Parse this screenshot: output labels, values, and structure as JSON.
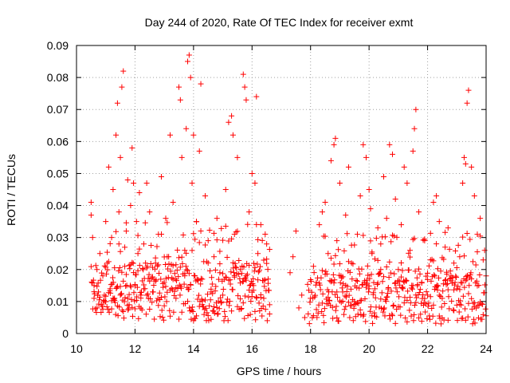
{
  "chart_data": {
    "type": "scatter",
    "title": "Day 244 of 2020, Rate Of TEC Index for receiver exmt",
    "xlabel": "GPS time / hours",
    "ylabel": "ROTI / TECUs",
    "xlim": [
      10,
      24
    ],
    "ylim": [
      0,
      0.09
    ],
    "x_ticks": [
      10,
      12,
      14,
      16,
      18,
      20,
      22,
      24
    ],
    "x_tick_labels": [
      "10",
      "12",
      "14",
      "16",
      "18",
      "20",
      "22",
      "24"
    ],
    "y_ticks": [
      0,
      0.01,
      0.02,
      0.03,
      0.04,
      0.05,
      0.06,
      0.07,
      0.08,
      0.09
    ],
    "y_tick_labels": [
      "0",
      "0.01",
      "0.02",
      "0.03",
      "0.04",
      "0.05",
      "0.06",
      "0.07",
      "0.08",
      "0.09"
    ],
    "grid": true,
    "marker": "plus",
    "color": "#ff0000",
    "series": [
      {
        "name": "ROTI",
        "points": [
          [
            10.5,
            0.041
          ],
          [
            10.5,
            0.037
          ],
          [
            10.55,
            0.03
          ],
          [
            10.6,
            0.015
          ],
          [
            10.6,
            0.011
          ],
          [
            10.7,
            0.008
          ],
          [
            10.7,
            0.02
          ],
          [
            10.75,
            0.013
          ],
          [
            10.8,
            0.025
          ],
          [
            10.85,
            0.009
          ],
          [
            10.9,
            0.018
          ],
          [
            10.95,
            0.012
          ],
          [
            11.0,
            0.035
          ],
          [
            11.0,
            0.01
          ],
          [
            11.05,
            0.022
          ],
          [
            11.1,
            0.052
          ],
          [
            11.15,
            0.014
          ],
          [
            11.2,
            0.03
          ],
          [
            11.25,
            0.045
          ],
          [
            11.3,
            0.011
          ],
          [
            11.35,
            0.062
          ],
          [
            11.4,
            0.072
          ],
          [
            11.45,
            0.038
          ],
          [
            11.5,
            0.055
          ],
          [
            11.5,
            0.012
          ],
          [
            11.55,
            0.077
          ],
          [
            11.6,
            0.082
          ],
          [
            11.65,
            0.021
          ],
          [
            11.7,
            0.032
          ],
          [
            11.75,
            0.048
          ],
          [
            11.8,
            0.009
          ],
          [
            11.85,
            0.04
          ],
          [
            11.9,
            0.058
          ],
          [
            11.95,
            0.047
          ],
          [
            12.0,
            0.015
          ],
          [
            12.05,
            0.035
          ],
          [
            12.1,
            0.025
          ],
          [
            12.15,
            0.044
          ],
          [
            12.2,
            0.012
          ],
          [
            12.3,
            0.028
          ],
          [
            12.4,
            0.047
          ],
          [
            12.5,
            0.038
          ],
          [
            12.6,
            0.013
          ],
          [
            12.7,
            0.022
          ],
          [
            12.8,
            0.031
          ],
          [
            12.9,
            0.049
          ],
          [
            13.0,
            0.016
          ],
          [
            13.05,
            0.036
          ],
          [
            13.1,
            0.024
          ],
          [
            13.2,
            0.062
          ],
          [
            13.3,
            0.041
          ],
          [
            13.4,
            0.011
          ],
          [
            13.5,
            0.077
          ],
          [
            13.55,
            0.073
          ],
          [
            13.6,
            0.055
          ],
          [
            13.7,
            0.026
          ],
          [
            13.75,
            0.064
          ],
          [
            13.8,
            0.085
          ],
          [
            13.85,
            0.087
          ],
          [
            13.9,
            0.08
          ],
          [
            13.95,
            0.047
          ],
          [
            14.0,
            0.062
          ],
          [
            14.05,
            0.018
          ],
          [
            14.1,
            0.035
          ],
          [
            14.2,
            0.057
          ],
          [
            14.25,
            0.078
          ],
          [
            14.3,
            0.009
          ],
          [
            14.4,
            0.043
          ],
          [
            14.5,
            0.029
          ],
          [
            14.6,
            0.013
          ],
          [
            14.7,
            0.024
          ],
          [
            14.8,
            0.036
          ],
          [
            14.9,
            0.019
          ],
          [
            15.0,
            0.012
          ],
          [
            15.1,
            0.045
          ],
          [
            15.2,
            0.066
          ],
          [
            15.3,
            0.068
          ],
          [
            15.35,
            0.062
          ],
          [
            15.4,
            0.031
          ],
          [
            15.5,
            0.055
          ],
          [
            15.6,
            0.02
          ],
          [
            15.7,
            0.081
          ],
          [
            15.75,
            0.077
          ],
          [
            15.8,
            0.073
          ],
          [
            15.9,
            0.038
          ],
          [
            16.0,
            0.05
          ],
          [
            16.05,
            0.015
          ],
          [
            16.1,
            0.047
          ],
          [
            16.15,
            0.074
          ],
          [
            16.2,
            0.025
          ],
          [
            16.3,
            0.034
          ],
          [
            16.4,
            0.011
          ],
          [
            16.5,
            0.028
          ],
          [
            16.55,
            0.017
          ],
          [
            16.6,
            0.009
          ],
          [
            17.3,
            0.019
          ],
          [
            17.4,
            0.024
          ],
          [
            17.5,
            0.032
          ],
          [
            17.6,
            0.008
          ],
          [
            17.7,
            0.012
          ],
          [
            17.8,
            0.005
          ],
          [
            18.0,
            0.011
          ],
          [
            18.1,
            0.021
          ],
          [
            18.2,
            0.016
          ],
          [
            18.3,
            0.034
          ],
          [
            18.4,
            0.038
          ],
          [
            18.5,
            0.041
          ],
          [
            18.6,
            0.025
          ],
          [
            18.7,
            0.054
          ],
          [
            18.8,
            0.059
          ],
          [
            18.85,
            0.061
          ],
          [
            18.9,
            0.029
          ],
          [
            19.0,
            0.047
          ],
          [
            19.1,
            0.013
          ],
          [
            19.2,
            0.037
          ],
          [
            19.3,
            0.052
          ],
          [
            19.4,
            0.022
          ],
          [
            19.5,
            0.01
          ],
          [
            19.6,
            0.031
          ],
          [
            19.7,
            0.043
          ],
          [
            19.8,
            0.059
          ],
          [
            19.9,
            0.055
          ],
          [
            20.0,
            0.045
          ],
          [
            20.05,
            0.039
          ],
          [
            20.1,
            0.025
          ],
          [
            20.2,
            0.014
          ],
          [
            20.3,
            0.033
          ],
          [
            20.4,
            0.028
          ],
          [
            20.5,
            0.049
          ],
          [
            20.6,
            0.036
          ],
          [
            20.7,
            0.059
          ],
          [
            20.8,
            0.056
          ],
          [
            20.9,
            0.042
          ],
          [
            21.0,
            0.02
          ],
          [
            21.1,
            0.034
          ],
          [
            21.2,
            0.052
          ],
          [
            21.3,
            0.047
          ],
          [
            21.4,
            0.026
          ],
          [
            21.5,
            0.057
          ],
          [
            21.55,
            0.064
          ],
          [
            21.6,
            0.07
          ],
          [
            21.7,
            0.038
          ],
          [
            21.8,
            0.016
          ],
          [
            21.9,
            0.029
          ],
          [
            22.0,
            0.012
          ],
          [
            22.1,
            0.023
          ],
          [
            22.2,
            0.041
          ],
          [
            22.3,
            0.043
          ],
          [
            22.4,
            0.035
          ],
          [
            22.5,
            0.011
          ],
          [
            22.6,
            0.027
          ],
          [
            22.7,
            0.033
          ],
          [
            22.8,
            0.018
          ],
          [
            22.9,
            0.022
          ],
          [
            23.0,
            0.014
          ],
          [
            23.1,
            0.024
          ],
          [
            23.2,
            0.047
          ],
          [
            23.25,
            0.055
          ],
          [
            23.3,
            0.053
          ],
          [
            23.35,
            0.072
          ],
          [
            23.4,
            0.076
          ],
          [
            23.5,
            0.052
          ],
          [
            23.6,
            0.043
          ],
          [
            23.7,
            0.031
          ],
          [
            23.8,
            0.036
          ],
          [
            23.9,
            0.023
          ],
          [
            23.95,
            0.026
          ],
          [
            24.0,
            0.018
          ]
        ],
        "dense_bands": [
          {
            "x_start": 10.5,
            "x_end": 16.6,
            "y_low": 0.004,
            "y_high": 0.022,
            "step": 0.02
          },
          {
            "x_start": 17.9,
            "x_end": 24.0,
            "y_low": 0.003,
            "y_high": 0.02,
            "step": 0.02
          },
          {
            "x_start": 11.0,
            "x_end": 16.6,
            "y_low": 0.01,
            "y_high": 0.035,
            "step": 0.05
          },
          {
            "x_start": 18.4,
            "x_end": 23.8,
            "y_low": 0.008,
            "y_high": 0.032,
            "step": 0.05
          }
        ]
      }
    ]
  }
}
